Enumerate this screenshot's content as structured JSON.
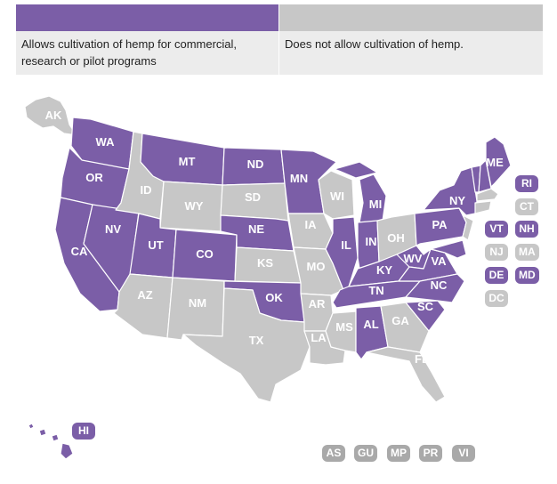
{
  "legend": {
    "allow": {
      "text": "Allows cultivation of hemp for commercial, research or pilot programs",
      "color": "#7b5ea7"
    },
    "disallow": {
      "text": "Does not allow cultivation of hemp.",
      "color": "#c7c7c7"
    }
  },
  "states": {
    "AK": "AK",
    "WA": "WA",
    "OR": "OR",
    "CA": "CA",
    "NV": "NV",
    "ID": "ID",
    "MT": "MT",
    "WY": "WY",
    "UT": "UT",
    "AZ": "AZ",
    "CO": "CO",
    "NM": "NM",
    "ND": "ND",
    "SD": "SD",
    "NE": "NE",
    "KS": "KS",
    "OK": "OK",
    "TX": "TX",
    "MN": "MN",
    "IA": "IA",
    "MO": "MO",
    "AR": "AR",
    "LA": "LA",
    "WI": "WI",
    "IL": "IL",
    "MS": "MS",
    "MI": "MI",
    "IN": "IN",
    "KY": "KY",
    "TN": "TN",
    "AL": "AL",
    "OH": "OH",
    "GA": "GA",
    "FL": "FL",
    "WV": "WV",
    "VA": "VA",
    "NC": "NC",
    "SC": "SC",
    "PA": "PA",
    "NY": "NY",
    "ME": "ME",
    "HI": "HI"
  },
  "side_badges": [
    {
      "code": "RI",
      "status": "allow"
    },
    {
      "code": "CT",
      "status": "disallow"
    },
    {
      "code": "VT",
      "status": "allow"
    },
    {
      "code": "NH",
      "status": "allow"
    },
    {
      "code": "NJ",
      "status": "disallow"
    },
    {
      "code": "MA",
      "status": "disallow"
    },
    {
      "code": "DE",
      "status": "allow"
    },
    {
      "code": "MD",
      "status": "allow"
    },
    {
      "code": "DC",
      "status": "disallow"
    }
  ],
  "territories": [
    "AS",
    "GU",
    "MP",
    "PR",
    "VI"
  ]
}
